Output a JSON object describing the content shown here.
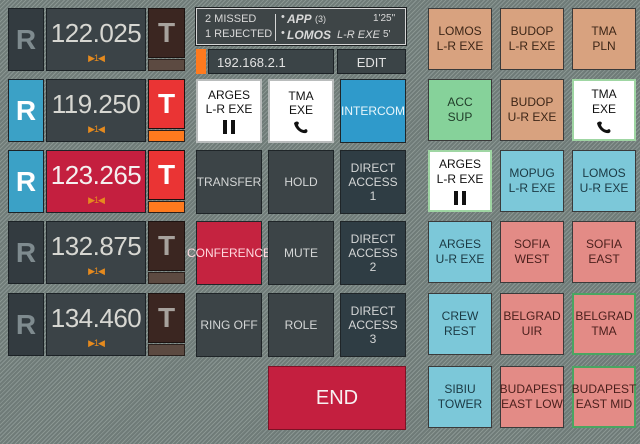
{
  "frequencies": [
    {
      "r": "R",
      "value": "122.025",
      "marks": "▶1◀",
      "t": "T",
      "active": false,
      "t_active": false
    },
    {
      "r": "R",
      "value": "119.250",
      "marks": "▶1◀",
      "t": "T",
      "active": true,
      "t_active": true
    },
    {
      "r": "R",
      "value": "123.265",
      "marks": "▶1◀",
      "t": "T",
      "active": true,
      "t_active": true
    },
    {
      "r": "R",
      "value": "132.875",
      "marks": "▶1◀",
      "t": "T",
      "active": false,
      "t_active": false
    },
    {
      "r": "R",
      "value": "134.460",
      "marks": "▶1◀",
      "t": "T",
      "active": false,
      "t_active": false
    }
  ],
  "status": {
    "missed": "2 MISSED",
    "rejected": "1 REJECTED",
    "app_label": "APP",
    "app_count": "(3)",
    "app_time": "1'25\"",
    "lomos_label": "LOMOS",
    "lomos_sub": "L-R EXE",
    "lomos_time": "5'"
  },
  "ip": {
    "address": "192.168.2.1",
    "edit_label": "EDIT"
  },
  "middle": {
    "arges_1": "ARGES",
    "arges_2": "L-R EXE",
    "tma_1": "TMA",
    "tma_2": "EXE",
    "intercom": "INTERCOM",
    "transfer": "TRANSFER",
    "hold": "HOLD",
    "da1_1": "DIRECT",
    "da1_2": "ACCESS",
    "da1_3": "1",
    "conference": "CONFERENCE",
    "mute": "MUTE",
    "da2_1": "DIRECT",
    "da2_2": "ACCESS",
    "da2_3": "2",
    "ring_off": "RING OFF",
    "role": "ROLE",
    "da3_1": "DIRECT",
    "da3_2": "ACCESS",
    "da3_3": "3",
    "end": "END"
  },
  "grid": [
    {
      "l1": "LOMOS",
      "l2": "L-R EXE"
    },
    {
      "l1": "BUDOP",
      "l2": "L-R EXE"
    },
    {
      "l1": "TMA",
      "l2": "PLN"
    },
    {
      "l1": "ACC",
      "l2": "SUP"
    },
    {
      "l1": "BUDOP",
      "l2": "U-R EXE"
    },
    {
      "l1": "TMA",
      "l2": "EXE"
    },
    {
      "l1": "ARGES",
      "l2": "L-R EXE"
    },
    {
      "l1": "MOPUG",
      "l2": "L-R EXE"
    },
    {
      "l1": "LOMOS",
      "l2": "U-R EXE"
    },
    {
      "l1": "ARGES",
      "l2": "U-R EXE"
    },
    {
      "l1": "SOFIA",
      "l2": "WEST"
    },
    {
      "l1": "SOFIA",
      "l2": "EAST"
    },
    {
      "l1": "CREW",
      "l2": "REST"
    },
    {
      "l1": "BELGRAD",
      "l2": "UIR"
    },
    {
      "l1": "BELGRAD",
      "l2": "TMA"
    },
    {
      "l1": "SIBIU",
      "l2": "TOWER"
    },
    {
      "l1": "BUDAPEST",
      "l2": "EAST LOW"
    },
    {
      "l1": "BUDAPEST",
      "l2": "EAST MID"
    }
  ]
}
